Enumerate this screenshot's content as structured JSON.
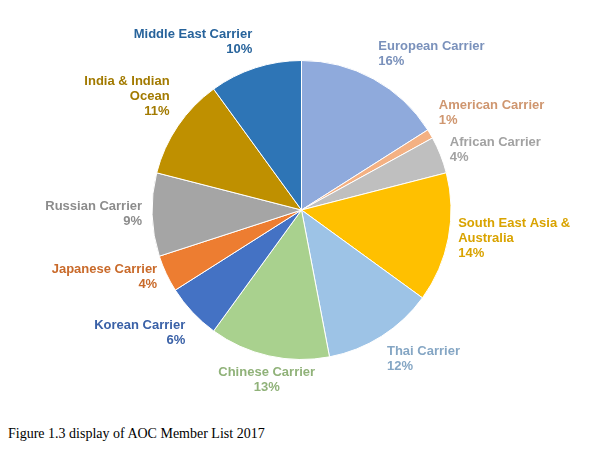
{
  "chart_data": {
    "type": "pie",
    "caption": "Figure 1.3 display of AOC Member List 2017",
    "categories": [
      "European Carrier",
      "American Carrier",
      "African Carrier",
      "South East Asia & Australia",
      "Thai Carrier",
      "Chinese Carrier",
      "Korean Carrier",
      "Japanese Carrier",
      "Russian Carrier",
      "India & Indian Ocean",
      "Middle East Carrier"
    ],
    "values": [
      16,
      1,
      4,
      14,
      12,
      13,
      6,
      4,
      9,
      11,
      10
    ],
    "value_labels": [
      "16%",
      "1%",
      "4%",
      "14%",
      "12%",
      "13%",
      "6%",
      "4%",
      "9%",
      "11%",
      "10%"
    ],
    "colors": [
      "#8faadc",
      "#f4b183",
      "#bfbfbf",
      "#ffc000",
      "#9dc3e6",
      "#a9d18e",
      "#4472c4",
      "#ed7d31",
      "#a5a5a5",
      "#bf9000",
      "#2e75b6"
    ],
    "data_labels": true
  }
}
